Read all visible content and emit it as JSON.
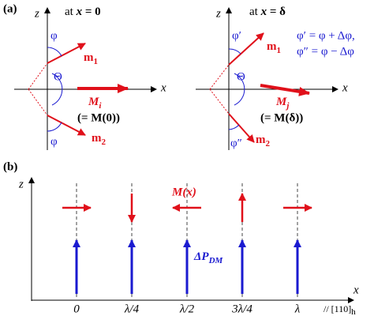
{
  "panel_a": {
    "label": "(a)",
    "left": {
      "z": "z",
      "x": "x",
      "title": {
        "prefix": "at ",
        "var": "x",
        "suffix": " = 0"
      },
      "phi_top": "φ",
      "phi_bottom": "φ",
      "theta": "Θ",
      "m1": {
        "main": "m",
        "sub": "1"
      },
      "m2": {
        "main": "m",
        "sub": "2"
      },
      "M": {
        "main": "M",
        "sub": "i"
      },
      "equiv": "(= M(0))"
    },
    "right": {
      "z": "z",
      "x": "x",
      "title": {
        "prefix": "at ",
        "var": "x",
        "suffix": " = δ"
      },
      "phi_top": "φ′",
      "phi_bottom": "φ″",
      "theta": "Θ",
      "m1": {
        "main": "m",
        "sub": "1"
      },
      "m2": {
        "main": "m",
        "sub": "2"
      },
      "M": {
        "main": "M",
        "sub": "j"
      },
      "equiv": "(= M(δ))",
      "eq1": "φ′ = φ + Δφ,",
      "eq2": "φ″ = φ − Δφ"
    }
  },
  "panel_b": {
    "label": "(b)",
    "z": "z",
    "x": "x",
    "direction": {
      "main": "// [110]",
      "sub": "h"
    },
    "M_label": "M(x)",
    "P_label": {
      "main": "ΔP",
      "sub": "DM"
    },
    "positions": [
      {
        "label": "0",
        "spin": "right"
      },
      {
        "label": "λ/4",
        "spin": "down"
      },
      {
        "label": "λ/2",
        "spin": "left"
      },
      {
        "label": "3λ/4",
        "spin": "up"
      },
      {
        "label": "λ",
        "spin": "right"
      }
    ]
  }
}
